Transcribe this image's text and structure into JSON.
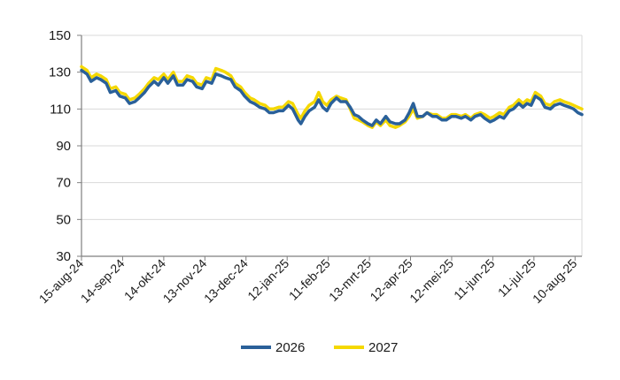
{
  "chart_data": {
    "type": "line",
    "title": "",
    "xlabel": "",
    "ylabel": "",
    "ylim": [
      30,
      150
    ],
    "yticks": [
      30,
      50,
      70,
      90,
      110,
      130,
      150
    ],
    "xlim": [
      "2024-08-15",
      "2025-08-15"
    ],
    "xtick_labels": [
      "15-aug-24",
      "14-sep-24",
      "14-okt-24",
      "13-nov-24",
      "13-dec-24",
      "12-jan-25",
      "11-feb-25",
      "13-mrt-25",
      "12-apr-25",
      "12-mei-25",
      "11-jun-25",
      "11-jul-25",
      "10-aug-25"
    ],
    "xtick_dates": [
      "2024-08-15",
      "2024-09-14",
      "2024-10-14",
      "2024-11-13",
      "2024-12-13",
      "2025-01-12",
      "2025-02-11",
      "2025-03-13",
      "2025-04-12",
      "2025-05-12",
      "2025-06-11",
      "2025-07-11",
      "2025-08-10"
    ],
    "grid": "horizontal",
    "legend_position": "bottom",
    "series": [
      {
        "name": "2026",
        "color": "#2a6099",
        "points": [
          [
            "2024-08-15",
            131
          ],
          [
            "2024-08-19",
            129
          ],
          [
            "2024-08-22",
            125
          ],
          [
            "2024-08-26",
            127
          ],
          [
            "2024-08-29",
            126
          ],
          [
            "2024-09-02",
            124
          ],
          [
            "2024-09-05",
            119
          ],
          [
            "2024-09-09",
            120
          ],
          [
            "2024-09-12",
            117
          ],
          [
            "2024-09-16",
            116
          ],
          [
            "2024-09-19",
            113
          ],
          [
            "2024-09-23",
            114
          ],
          [
            "2024-09-26",
            116
          ],
          [
            "2024-09-30",
            119
          ],
          [
            "2024-10-03",
            122
          ],
          [
            "2024-10-07",
            125
          ],
          [
            "2024-10-10",
            123
          ],
          [
            "2024-10-14",
            127
          ],
          [
            "2024-10-17",
            124
          ],
          [
            "2024-10-21",
            128
          ],
          [
            "2024-10-24",
            123
          ],
          [
            "2024-10-28",
            123
          ],
          [
            "2024-10-31",
            126
          ],
          [
            "2024-11-04",
            125
          ],
          [
            "2024-11-07",
            122
          ],
          [
            "2024-11-11",
            121
          ],
          [
            "2024-11-14",
            125
          ],
          [
            "2024-11-18",
            124
          ],
          [
            "2024-11-21",
            129
          ],
          [
            "2024-11-25",
            128
          ],
          [
            "2024-11-28",
            127
          ],
          [
            "2024-12-02",
            126
          ],
          [
            "2024-12-05",
            122
          ],
          [
            "2024-12-09",
            120
          ],
          [
            "2024-12-12",
            117
          ],
          [
            "2024-12-16",
            114
          ],
          [
            "2024-12-19",
            113
          ],
          [
            "2024-12-23",
            111
          ],
          [
            "2024-12-27",
            110
          ],
          [
            "2024-12-30",
            108
          ],
          [
            "2025-01-02",
            108
          ],
          [
            "2025-01-06",
            109
          ],
          [
            "2025-01-09",
            109
          ],
          [
            "2025-01-13",
            112
          ],
          [
            "2025-01-16",
            110
          ],
          [
            "2025-01-20",
            104
          ],
          [
            "2025-01-22",
            102
          ],
          [
            "2025-01-25",
            106
          ],
          [
            "2025-01-28",
            109
          ],
          [
            "2025-02-01",
            111
          ],
          [
            "2025-02-04",
            115
          ],
          [
            "2025-02-07",
            111
          ],
          [
            "2025-02-10",
            109
          ],
          [
            "2025-02-13",
            113
          ],
          [
            "2025-02-17",
            116
          ],
          [
            "2025-02-20",
            114
          ],
          [
            "2025-02-24",
            114
          ],
          [
            "2025-02-27",
            111
          ],
          [
            "2025-03-02",
            107
          ],
          [
            "2025-03-05",
            106
          ],
          [
            "2025-03-08",
            104
          ],
          [
            "2025-03-12",
            102
          ],
          [
            "2025-03-15",
            101
          ],
          [
            "2025-03-18",
            104
          ],
          [
            "2025-03-21",
            102
          ],
          [
            "2025-03-25",
            106
          ],
          [
            "2025-03-28",
            103
          ],
          [
            "2025-04-01",
            102
          ],
          [
            "2025-04-04",
            102
          ],
          [
            "2025-04-08",
            104
          ],
          [
            "2025-04-11",
            108
          ],
          [
            "2025-04-14",
            113
          ],
          [
            "2025-04-17",
            106
          ],
          [
            "2025-04-21",
            106
          ],
          [
            "2025-04-24",
            108
          ],
          [
            "2025-04-28",
            106
          ],
          [
            "2025-05-01",
            106
          ],
          [
            "2025-05-05",
            104
          ],
          [
            "2025-05-08",
            104
          ],
          [
            "2025-05-12",
            106
          ],
          [
            "2025-05-15",
            106
          ],
          [
            "2025-05-19",
            105
          ],
          [
            "2025-05-22",
            106
          ],
          [
            "2025-05-26",
            104
          ],
          [
            "2025-05-29",
            106
          ],
          [
            "2025-06-02",
            107
          ],
          [
            "2025-06-05",
            105
          ],
          [
            "2025-06-09",
            103
          ],
          [
            "2025-06-12",
            104
          ],
          [
            "2025-06-16",
            106
          ],
          [
            "2025-06-19",
            105
          ],
          [
            "2025-06-23",
            109
          ],
          [
            "2025-06-26",
            110
          ],
          [
            "2025-06-30",
            113
          ],
          [
            "2025-07-03",
            111
          ],
          [
            "2025-07-06",
            113
          ],
          [
            "2025-07-09",
            112
          ],
          [
            "2025-07-12",
            117
          ],
          [
            "2025-07-16",
            115
          ],
          [
            "2025-07-19",
            111
          ],
          [
            "2025-07-23",
            110
          ],
          [
            "2025-07-26",
            112
          ],
          [
            "2025-07-30",
            113
          ],
          [
            "2025-08-02",
            112
          ],
          [
            "2025-08-06",
            111
          ],
          [
            "2025-08-09",
            110
          ],
          [
            "2025-08-12",
            108
          ],
          [
            "2025-08-15",
            107
          ]
        ]
      },
      {
        "name": "2027",
        "color": "#f5d800",
        "points": [
          [
            "2024-08-15",
            133
          ],
          [
            "2024-08-19",
            131
          ],
          [
            "2024-08-22",
            127
          ],
          [
            "2024-08-26",
            129
          ],
          [
            "2024-08-29",
            128
          ],
          [
            "2024-09-02",
            126
          ],
          [
            "2024-09-05",
            121
          ],
          [
            "2024-09-09",
            122
          ],
          [
            "2024-09-12",
            119
          ],
          [
            "2024-09-16",
            118
          ],
          [
            "2024-09-19",
            115
          ],
          [
            "2024-09-23",
            116
          ],
          [
            "2024-09-26",
            118
          ],
          [
            "2024-09-30",
            121
          ],
          [
            "2024-10-03",
            124
          ],
          [
            "2024-10-07",
            127
          ],
          [
            "2024-10-10",
            126
          ],
          [
            "2024-10-14",
            129
          ],
          [
            "2024-10-17",
            126
          ],
          [
            "2024-10-21",
            130
          ],
          [
            "2024-10-24",
            125
          ],
          [
            "2024-10-28",
            125
          ],
          [
            "2024-10-31",
            128
          ],
          [
            "2024-11-04",
            127
          ],
          [
            "2024-11-07",
            124
          ],
          [
            "2024-11-11",
            123
          ],
          [
            "2024-11-14",
            127
          ],
          [
            "2024-11-18",
            126
          ],
          [
            "2024-11-21",
            132
          ],
          [
            "2024-11-25",
            131
          ],
          [
            "2024-11-28",
            130
          ],
          [
            "2024-12-02",
            128
          ],
          [
            "2024-12-05",
            124
          ],
          [
            "2024-12-09",
            122
          ],
          [
            "2024-12-12",
            119
          ],
          [
            "2024-12-16",
            116
          ],
          [
            "2024-12-19",
            115
          ],
          [
            "2024-12-23",
            113
          ],
          [
            "2024-12-27",
            112
          ],
          [
            "2024-12-30",
            110
          ],
          [
            "2025-01-02",
            110
          ],
          [
            "2025-01-06",
            111
          ],
          [
            "2025-01-09",
            111
          ],
          [
            "2025-01-13",
            114
          ],
          [
            "2025-01-16",
            113
          ],
          [
            "2025-01-20",
            107
          ],
          [
            "2025-01-22",
            105
          ],
          [
            "2025-01-25",
            109
          ],
          [
            "2025-01-28",
            112
          ],
          [
            "2025-02-01",
            114
          ],
          [
            "2025-02-04",
            119
          ],
          [
            "2025-02-07",
            114
          ],
          [
            "2025-02-10",
            112
          ],
          [
            "2025-02-13",
            115
          ],
          [
            "2025-02-17",
            117
          ],
          [
            "2025-02-20",
            116
          ],
          [
            "2025-02-24",
            115
          ],
          [
            "2025-02-27",
            110
          ],
          [
            "2025-03-02",
            105
          ],
          [
            "2025-03-05",
            104
          ],
          [
            "2025-03-08",
            103
          ],
          [
            "2025-03-12",
            101
          ],
          [
            "2025-03-15",
            100
          ],
          [
            "2025-03-18",
            103
          ],
          [
            "2025-03-21",
            101
          ],
          [
            "2025-03-25",
            104
          ],
          [
            "2025-03-28",
            101
          ],
          [
            "2025-04-01",
            100
          ],
          [
            "2025-04-04",
            101
          ],
          [
            "2025-04-08",
            103
          ],
          [
            "2025-04-11",
            106
          ],
          [
            "2025-04-14",
            110
          ],
          [
            "2025-04-17",
            105
          ],
          [
            "2025-04-21",
            106
          ],
          [
            "2025-04-24",
            108
          ],
          [
            "2025-04-28",
            107
          ],
          [
            "2025-05-01",
            107
          ],
          [
            "2025-05-05",
            105
          ],
          [
            "2025-05-08",
            105
          ],
          [
            "2025-05-12",
            107
          ],
          [
            "2025-05-15",
            107
          ],
          [
            "2025-05-19",
            106
          ],
          [
            "2025-05-22",
            107
          ],
          [
            "2025-05-26",
            105
          ],
          [
            "2025-05-29",
            107
          ],
          [
            "2025-06-02",
            108
          ],
          [
            "2025-06-05",
            107
          ],
          [
            "2025-06-09",
            105
          ],
          [
            "2025-06-12",
            106
          ],
          [
            "2025-06-16",
            108
          ],
          [
            "2025-06-19",
            107
          ],
          [
            "2025-06-23",
            111
          ],
          [
            "2025-06-26",
            112
          ],
          [
            "2025-06-30",
            115
          ],
          [
            "2025-07-03",
            113
          ],
          [
            "2025-07-06",
            115
          ],
          [
            "2025-07-09",
            114
          ],
          [
            "2025-07-12",
            119
          ],
          [
            "2025-07-16",
            117
          ],
          [
            "2025-07-19",
            113
          ],
          [
            "2025-07-23",
            112
          ],
          [
            "2025-07-26",
            114
          ],
          [
            "2025-07-30",
            115
          ],
          [
            "2025-08-02",
            114
          ],
          [
            "2025-08-06",
            113
          ],
          [
            "2025-08-09",
            112
          ],
          [
            "2025-08-12",
            111
          ],
          [
            "2025-08-15",
            110
          ]
        ]
      }
    ]
  }
}
